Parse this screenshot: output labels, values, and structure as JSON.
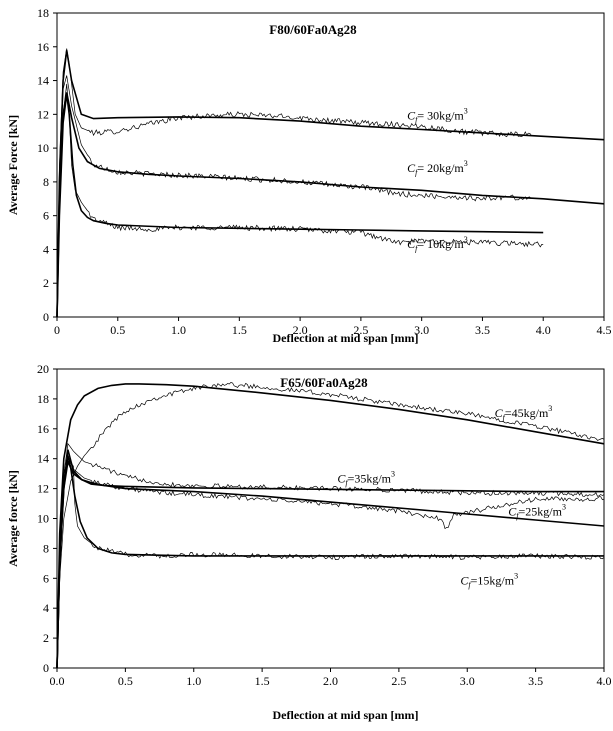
{
  "chart_data": [
    {
      "type": "line",
      "title": "F80/60Fa0Ag28",
      "xlabel": "Deflection at mid span [mm]",
      "ylabel": "Average Force [kN]",
      "xlim": [
        0,
        4.5
      ],
      "ylim": [
        0,
        18
      ],
      "xticks": [
        "0",
        "0.5",
        "1.0",
        "1.5",
        "2.0",
        "2.5",
        "3.0",
        "3.5",
        "4.0",
        "4.5"
      ],
      "yticks": [
        "0",
        "2",
        "4",
        "6",
        "8",
        "10",
        "12",
        "14",
        "16",
        "18"
      ],
      "grid": false,
      "legend": "none",
      "series": [
        {
          "annotation": {
            "base": "C",
            "sub": "f",
            "text": "= 30kg/m",
            "sup": "3"
          },
          "annotation_at": [
            2.88,
            11.7
          ],
          "fit": {
            "x": [
              0,
              0.02,
              0.05,
              0.08,
              0.12,
              0.2,
              0.3,
              0.5,
              1.0,
              1.5,
              2.0,
              2.5,
              3.0,
              3.5,
              4.0,
              4.5
            ],
            "y": [
              0,
              8.0,
              14.0,
              15.8,
              14.0,
              12.0,
              11.75,
              11.8,
              11.85,
              11.8,
              11.6,
              11.3,
              11.1,
              10.9,
              10.7,
              10.5
            ]
          },
          "test": {
            "x": [
              0,
              0.02,
              0.05,
              0.08,
              0.1,
              0.15,
              0.2,
              0.3,
              0.5,
              0.8,
              1.0,
              1.2,
              1.5,
              1.8,
              2.0,
              2.3,
              2.5,
              2.8,
              3.0,
              3.3,
              3.5,
              3.7,
              3.9
            ],
            "y": [
              0,
              9.0,
              14.5,
              15.9,
              15.0,
              12.0,
              11.2,
              10.9,
              11.0,
              11.5,
              11.8,
              11.9,
              12.0,
              11.9,
              11.8,
              11.6,
              11.5,
              11.4,
              11.3,
              11.0,
              10.9,
              10.8,
              10.8
            ]
          }
        },
        {
          "annotation": {
            "base": "C",
            "sub": "f",
            "text": "= 20kg/m",
            "sup": "3"
          },
          "annotation_at": [
            2.88,
            8.6
          ],
          "fit": {
            "x": [
              0,
              0.02,
              0.05,
              0.08,
              0.12,
              0.18,
              0.25,
              0.35,
              0.5,
              0.75,
              1.0,
              1.5,
              2.0,
              2.5,
              3.0,
              3.5,
              4.0,
              4.5
            ],
            "y": [
              0,
              7.0,
              12.0,
              13.3,
              11.8,
              10.0,
              9.2,
              8.8,
              8.6,
              8.45,
              8.35,
              8.2,
              8.0,
              7.7,
              7.5,
              7.2,
              7.0,
              6.7
            ]
          },
          "test": {
            "x": [
              0,
              0.02,
              0.05,
              0.08,
              0.12,
              0.2,
              0.3,
              0.4,
              0.5,
              0.7,
              1.0,
              1.3,
              1.5,
              1.8,
              2.0,
              2.3,
              2.5,
              2.8,
              3.0,
              3.3,
              3.5,
              3.7,
              3.9
            ],
            "y": [
              0,
              8.0,
              13.5,
              14.3,
              12.5,
              10.2,
              9.0,
              8.8,
              8.6,
              8.5,
              8.4,
              8.3,
              8.2,
              8.1,
              8.0,
              7.8,
              7.7,
              7.3,
              7.2,
              7.1,
              7.0,
              7.1,
              7.0
            ]
          }
        },
        {
          "annotation": {
            "base": "C",
            "sub": "f",
            "text": "= 10kg/m",
            "sup": "3"
          },
          "annotation_at": [
            2.88,
            4.1
          ],
          "fit": {
            "x": [
              0,
              0.02,
              0.05,
              0.08,
              0.1,
              0.13,
              0.16,
              0.2,
              0.25,
              0.3,
              0.4,
              0.5,
              1.0,
              1.5,
              2.0,
              2.5,
              3.0,
              3.5,
              4.0
            ],
            "y": [
              0,
              6.0,
              11.5,
              13.2,
              12.0,
              9.0,
              7.2,
              6.3,
              5.9,
              5.7,
              5.55,
              5.45,
              5.3,
              5.25,
              5.2,
              5.15,
              5.1,
              5.05,
              5.0
            ]
          },
          "test": {
            "x": [
              0,
              0.02,
              0.05,
              0.08,
              0.1,
              0.12,
              0.15,
              0.2,
              0.3,
              0.5,
              0.8,
              1.0,
              1.5,
              2.0,
              2.5,
              2.7,
              2.8,
              3.0,
              3.5,
              4.0
            ],
            "y": [
              0,
              7.0,
              12.0,
              13.8,
              12.0,
              9.0,
              7.5,
              6.8,
              5.8,
              5.3,
              5.2,
              5.3,
              5.3,
              5.2,
              5.0,
              4.6,
              4.4,
              4.5,
              4.4,
              4.3
            ]
          }
        }
      ]
    },
    {
      "type": "line",
      "title": "F65/60Fa0Ag28",
      "xlabel": "Deflection at mid span [mm]",
      "ylabel": "Average force [kN]",
      "xlim": [
        0,
        4.0
      ],
      "ylim": [
        0,
        20
      ],
      "xticks": [
        "0.0",
        "0.5",
        "1.0",
        "1.5",
        "2.0",
        "2.5",
        "3.0",
        "3.5",
        "4.0"
      ],
      "yticks": [
        "0",
        "2",
        "4",
        "6",
        "8",
        "10",
        "12",
        "14",
        "16",
        "18",
        "20"
      ],
      "grid": false,
      "legend": "none",
      "series": [
        {
          "annotation": {
            "base": "C",
            "sub": "f",
            "text": "=45kg/m",
            "sup": "3"
          },
          "annotation_at": [
            3.2,
            16.8
          ],
          "fit": {
            "x": [
              0,
              0.02,
              0.05,
              0.1,
              0.15,
              0.2,
              0.3,
              0.4,
              0.5,
              0.6,
              0.8,
              1.0,
              1.5,
              2.0,
              2.5,
              3.0,
              3.5,
              4.0
            ],
            "y": [
              0,
              9.0,
              14.0,
              16.6,
              17.6,
              18.2,
              18.7,
              18.9,
              19.0,
              19.0,
              18.95,
              18.85,
              18.4,
              17.9,
              17.3,
              16.6,
              15.8,
              15.0
            ]
          },
          "test": {
            "x": [
              0,
              0.02,
              0.05,
              0.1,
              0.15,
              0.2,
              0.3,
              0.4,
              0.5,
              0.7,
              0.9,
              1.0,
              1.2,
              1.5,
              2.0,
              2.5,
              3.0,
              3.5,
              3.8,
              4.0
            ],
            "y": [
              0,
              6.0,
              10.0,
              12.5,
              13.5,
              14.2,
              15.3,
              16.4,
              17.2,
              18.0,
              18.5,
              18.7,
              19.0,
              18.8,
              18.3,
              17.6,
              17.0,
              16.2,
              15.6,
              15.3
            ]
          }
        },
        {
          "annotation": {
            "base": "C",
            "sub": "f",
            "text": "=35kg/m",
            "sup": "3"
          },
          "annotation_at": [
            2.05,
            12.4
          ],
          "fit": {
            "x": [
              0,
              0.02,
              0.05,
              0.08,
              0.12,
              0.18,
              0.25,
              0.35,
              0.5,
              1.0,
              1.5,
              2.0,
              2.5,
              3.0,
              3.5,
              4.0
            ],
            "y": [
              0,
              7.0,
              12.0,
              14.6,
              13.2,
              12.6,
              12.3,
              12.2,
              12.15,
              12.05,
              12.0,
              11.95,
              11.9,
              11.85,
              11.8,
              11.8
            ]
          },
          "test": {
            "x": [
              0,
              0.02,
              0.05,
              0.08,
              0.12,
              0.2,
              0.3,
              0.5,
              0.8,
              1.0,
              1.5,
              2.0,
              2.5,
              3.0,
              3.5,
              4.0
            ],
            "y": [
              0,
              8.0,
              13.0,
              15.0,
              14.5,
              13.8,
              13.5,
              12.8,
              12.3,
              12.2,
              12.1,
              12.0,
              11.9,
              11.7,
              11.7,
              11.6
            ]
          }
        },
        {
          "annotation": {
            "base": "C",
            "sub": "f",
            "text": "=25kg/m",
            "sup": "3"
          },
          "annotation_at": [
            3.3,
            10.2
          ],
          "fit": {
            "x": [
              0,
              0.02,
              0.05,
              0.08,
              0.12,
              0.18,
              0.25,
              0.35,
              0.5,
              1.0,
              1.5,
              2.0,
              2.5,
              3.0,
              3.5,
              4.0
            ],
            "y": [
              0,
              7.0,
              12.0,
              13.8,
              13.0,
              12.6,
              12.4,
              12.2,
              12.0,
              11.8,
              11.5,
              11.1,
              10.7,
              10.3,
              9.9,
              9.5
            ]
          },
          "test": {
            "x": [
              0,
              0.02,
              0.05,
              0.08,
              0.12,
              0.2,
              0.3,
              0.5,
              0.8,
              1.0,
              1.5,
              2.0,
              2.5,
              2.8,
              2.85,
              2.9,
              3.0,
              3.5,
              4.0
            ],
            "y": [
              0,
              7.5,
              12.5,
              14.2,
              13.3,
              12.7,
              12.4,
              12.0,
              11.7,
              11.6,
              11.3,
              11.0,
              10.5,
              10.0,
              9.3,
              10.2,
              10.4,
              11.3,
              11.3
            ]
          }
        },
        {
          "annotation": {
            "base": "C",
            "sub": "f",
            "text": "=15kg/m",
            "sup": "3"
          },
          "annotation_at": [
            2.95,
            5.6
          ],
          "fit": {
            "x": [
              0,
              0.02,
              0.05,
              0.08,
              0.1,
              0.13,
              0.17,
              0.22,
              0.3,
              0.4,
              0.5,
              0.7,
              1.0,
              1.5,
              2.0,
              2.5,
              3.0,
              3.5,
              4.0
            ],
            "y": [
              0,
              7.0,
              12.5,
              14.2,
              13.4,
              11.5,
              9.8,
              8.7,
              8.0,
              7.7,
              7.6,
              7.55,
              7.5,
              7.5,
              7.5,
              7.5,
              7.5,
              7.5,
              7.5
            ]
          },
          "test": {
            "x": [
              0,
              0.02,
              0.05,
              0.08,
              0.12,
              0.13,
              0.15,
              0.2,
              0.3,
              0.5,
              0.8,
              1.0,
              1.5,
              2.0,
              2.5,
              3.0,
              3.5,
              4.0
            ],
            "y": [
              0,
              8.0,
              13.0,
              14.0,
              13.5,
              11.0,
              9.5,
              8.7,
              8.0,
              7.6,
              7.5,
              7.6,
              7.5,
              7.4,
              7.5,
              7.4,
              7.5,
              7.4
            ]
          }
        }
      ]
    }
  ]
}
